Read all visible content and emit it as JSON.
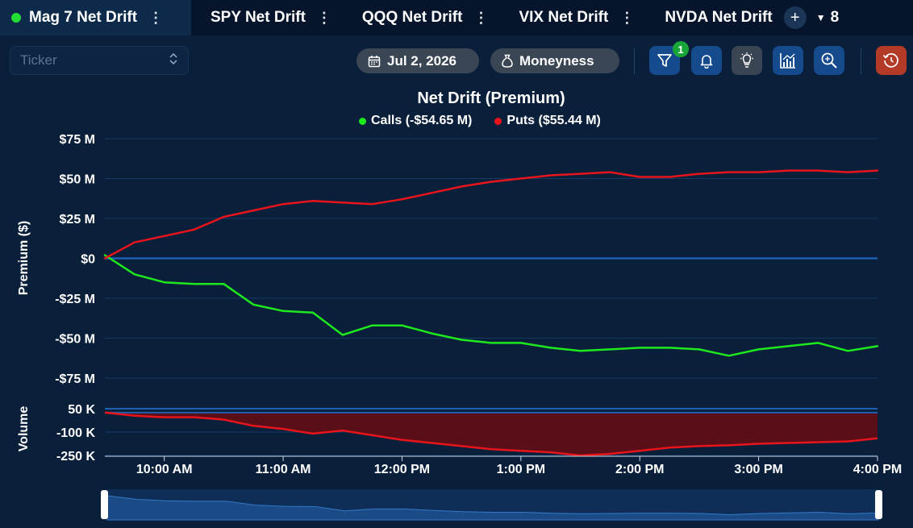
{
  "tabs": [
    {
      "label": "Mag 7 Net Drift",
      "active": true
    },
    {
      "label": "SPY Net Drift",
      "active": false
    },
    {
      "label": "QQQ Net Drift",
      "active": false
    },
    {
      "label": "VIX Net Drift",
      "active": false
    },
    {
      "label": "NVDA Net Drift",
      "active": false
    }
  ],
  "tab_overflow_count": "8",
  "ticker": {
    "placeholder": "Ticker"
  },
  "toolbar": {
    "date": "Jul 2, 2026",
    "moneyness": "Moneyness",
    "filter_badge": "1"
  },
  "colors": {
    "calls": "#1ee81e",
    "puts": "#e8141c",
    "zero_line": "#1f5fb0"
  },
  "chart_data": {
    "type": "line",
    "title": "Net Drift (Premium)",
    "legend": [
      {
        "name": "Calls (-$54.65 M)",
        "color": "#1ee81e"
      },
      {
        "name": "Puts ($55.44 M)",
        "color": "#e8141c"
      }
    ],
    "ylabel": "Premium ($)",
    "ylim_millions": [
      -75,
      75
    ],
    "y_ticks": [
      "$75 M",
      "$50 M",
      "$25 M",
      "$0",
      "-$25 M",
      "-$50 M",
      "-$75 M"
    ],
    "x_ticks": [
      "10:00 AM",
      "11:00 AM",
      "12:00 PM",
      "1:00 PM",
      "2:00 PM",
      "3:00 PM",
      "4:00 PM"
    ],
    "x": [
      "9:30",
      "9:45",
      "10:00",
      "10:15",
      "10:30",
      "10:45",
      "11:00",
      "11:15",
      "11:30",
      "11:45",
      "12:00",
      "12:15",
      "12:30",
      "12:45",
      "13:00",
      "13:15",
      "13:30",
      "13:45",
      "14:00",
      "14:15",
      "14:30",
      "14:45",
      "15:00",
      "15:15",
      "15:30",
      "15:45",
      "16:00"
    ],
    "series": [
      {
        "name": "Calls",
        "values": [
          2,
          -10,
          -15,
          -16,
          -16,
          -29,
          -33,
          -34,
          -48,
          -42,
          -42,
          -47,
          -51,
          -53,
          -53,
          -56,
          -58,
          -57,
          -56,
          -56,
          -57,
          -61,
          -57,
          -55,
          -53,
          -58,
          -55
        ]
      },
      {
        "name": "Puts",
        "values": [
          0,
          10,
          14,
          18,
          26,
          30,
          34,
          36,
          35,
          34,
          37,
          41,
          45,
          48,
          50,
          52,
          53,
          54,
          51,
          51,
          53,
          54,
          54,
          55,
          55,
          54,
          55
        ]
      }
    ],
    "volume": {
      "ylabel": "Volume",
      "y_ticks": [
        "50 K",
        "-100 K",
        "-250 K"
      ],
      "ylim_thousands": [
        -250,
        50
      ],
      "values": [
        25,
        5,
        -5,
        -5,
        -20,
        -60,
        -80,
        -110,
        -90,
        -120,
        -150,
        -170,
        -190,
        -210,
        -220,
        -230,
        -250,
        -240,
        -220,
        -200,
        -190,
        -185,
        -175,
        -170,
        -165,
        -160,
        -140
      ]
    }
  }
}
